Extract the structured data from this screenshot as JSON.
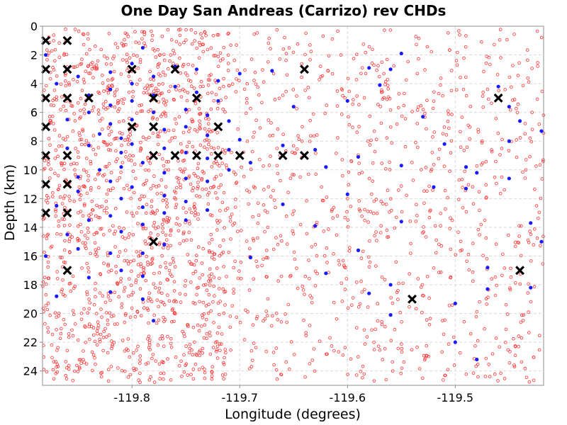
{
  "chart_data": {
    "type": "scatter",
    "title": "One Day San Andreas (Carrizo) rev CHDs",
    "xlabel": "Longitude (degrees)",
    "ylabel": "Depth (km)",
    "xlim": [
      -119.883,
      -119.418
    ],
    "ylim": [
      0,
      25
    ],
    "y_inverted": true,
    "grid": true,
    "legend": "none",
    "x_ticks": [
      -119.8,
      -119.7,
      -119.6,
      -119.5
    ],
    "x_tick_labels": [
      "-119.8",
      "-119.7",
      "-119.6",
      "-119.5"
    ],
    "y_ticks": [
      0,
      2,
      4,
      6,
      8,
      10,
      12,
      14,
      16,
      18,
      20,
      22,
      24
    ],
    "y_tick_labels": [
      "0",
      "2",
      "4",
      "6",
      "8",
      "10",
      "12",
      "14",
      "16",
      "18",
      "20",
      "22",
      "24"
    ],
    "background_cloud": {
      "color": "#ff3030",
      "marker": "open-circle",
      "approx_count": 2300,
      "x_range": [
        -119.883,
        -119.418
      ],
      "y_range": [
        0.2,
        24.8
      ]
    },
    "series": [
      {
        "marker": "filled-circle",
        "color": "#1a1aff",
        "points": [
          [
            -119.88,
            2.0
          ],
          [
            -119.87,
            4.0
          ],
          [
            -119.86,
            6.5
          ],
          [
            -119.86,
            8.5
          ],
          [
            -119.85,
            10.5
          ],
          [
            -119.87,
            12.5
          ],
          [
            -119.86,
            14.5
          ],
          [
            -119.88,
            16.0
          ],
          [
            -119.87,
            18.8
          ],
          [
            -119.85,
            3.5
          ],
          [
            -119.84,
            4.8
          ],
          [
            -119.84,
            6.0
          ],
          [
            -119.83,
            7.5
          ],
          [
            -119.84,
            8.3
          ],
          [
            -119.83,
            10.0
          ],
          [
            -119.85,
            11.5
          ],
          [
            -119.84,
            13.5
          ],
          [
            -119.85,
            15.5
          ],
          [
            -119.84,
            17.5
          ],
          [
            -119.82,
            3.2
          ],
          [
            -119.82,
            4.4
          ],
          [
            -119.82,
            5.5
          ],
          [
            -119.82,
            6.8
          ],
          [
            -119.81,
            7.8
          ],
          [
            -119.81,
            8.8
          ],
          [
            -119.81,
            9.8
          ],
          [
            -119.82,
            10.8
          ],
          [
            -119.81,
            12.0
          ],
          [
            -119.82,
            13.2
          ],
          [
            -119.81,
            14.3
          ],
          [
            -119.82,
            15.8
          ],
          [
            -119.81,
            17.0
          ],
          [
            -119.82,
            18.5
          ],
          [
            -119.8,
            2.6
          ],
          [
            -119.8,
            4.0
          ],
          [
            -119.8,
            5.2
          ],
          [
            -119.8,
            6.5
          ],
          [
            -119.8,
            8.2
          ],
          [
            -119.79,
            9.5
          ],
          [
            -119.8,
            11.2
          ],
          [
            -119.79,
            12.6
          ],
          [
            -119.79,
            13.8
          ],
          [
            -119.79,
            15.8
          ],
          [
            -119.79,
            17.4
          ],
          [
            -119.79,
            19.0
          ],
          [
            -119.78,
            20.5
          ],
          [
            -119.79,
            1.5
          ],
          [
            -119.78,
            3.5
          ],
          [
            -119.78,
            4.8
          ],
          [
            -119.78,
            6.0
          ],
          [
            -119.77,
            7.2
          ],
          [
            -119.77,
            8.5
          ],
          [
            -119.77,
            10.2
          ],
          [
            -119.77,
            11.8
          ],
          [
            -119.77,
            13.0
          ],
          [
            -119.77,
            15.2
          ],
          [
            -119.76,
            2.8
          ],
          [
            -119.76,
            4.2
          ],
          [
            -119.75,
            5.8
          ],
          [
            -119.75,
            7.0
          ],
          [
            -119.75,
            8.8
          ],
          [
            -119.75,
            10.6
          ],
          [
            -119.75,
            12.2
          ],
          [
            -119.75,
            13.5
          ],
          [
            -119.74,
            3.0
          ],
          [
            -119.74,
            4.6
          ],
          [
            -119.73,
            6.2
          ],
          [
            -119.73,
            7.6
          ],
          [
            -119.73,
            9.2
          ],
          [
            -119.73,
            10.8
          ],
          [
            -119.73,
            12.8
          ],
          [
            -119.72,
            3.8
          ],
          [
            -119.72,
            5.2
          ],
          [
            -119.71,
            6.6
          ],
          [
            -119.71,
            8.6
          ],
          [
            -119.71,
            10.0
          ],
          [
            -119.7,
            3.3
          ],
          [
            -119.7,
            7.9
          ],
          [
            -119.69,
            9.5
          ],
          [
            -119.67,
            3.1
          ],
          [
            -119.66,
            8.3
          ],
          [
            -119.65,
            5.6
          ],
          [
            -119.63,
            8.6
          ],
          [
            -119.62,
            9.8
          ],
          [
            -119.6,
            5.2
          ],
          [
            -119.59,
            9.1
          ],
          [
            -119.58,
            2.9
          ],
          [
            -119.57,
            4.1
          ],
          [
            -119.56,
            3.0
          ],
          [
            -119.56,
            18.0
          ],
          [
            -119.55,
            1.9
          ],
          [
            -119.55,
            9.7
          ],
          [
            -119.55,
            13.6
          ],
          [
            -119.53,
            6.3
          ],
          [
            -119.52,
            11.2
          ],
          [
            -119.51,
            8.2
          ],
          [
            -119.5,
            19.3
          ],
          [
            -119.5,
            22.0
          ],
          [
            -119.49,
            9.8
          ],
          [
            -119.49,
            11.3
          ],
          [
            -119.48,
            10.2
          ],
          [
            -119.48,
            23.2
          ],
          [
            -119.47,
            18.3
          ],
          [
            -119.47,
            16.8
          ],
          [
            -119.46,
            4.2
          ],
          [
            -119.45,
            5.6
          ],
          [
            -119.45,
            8.0
          ],
          [
            -119.45,
            10.6
          ],
          [
            -119.44,
            6.6
          ],
          [
            -119.43,
            13.7
          ],
          [
            -119.43,
            18.2
          ],
          [
            -119.42,
            7.3
          ],
          [
            -119.42,
            15.0
          ],
          [
            -119.69,
            16.1
          ],
          [
            -119.62,
            17.2
          ],
          [
            -119.59,
            15.6
          ],
          [
            -119.66,
            12.4
          ],
          [
            -119.63,
            13.9
          ],
          [
            -119.6,
            11.7
          ],
          [
            -119.58,
            18.6
          ],
          [
            -119.56,
            20.1
          ]
        ]
      },
      {
        "marker": "x-cross",
        "color": "#000000",
        "points": [
          [
            -119.88,
            1
          ],
          [
            -119.86,
            1
          ],
          [
            -119.88,
            3
          ],
          [
            -119.86,
            3
          ],
          [
            -119.8,
            3
          ],
          [
            -119.76,
            3
          ],
          [
            -119.64,
            3
          ],
          [
            -119.88,
            5
          ],
          [
            -119.86,
            5
          ],
          [
            -119.84,
            5
          ],
          [
            -119.78,
            5
          ],
          [
            -119.74,
            5
          ],
          [
            -119.46,
            5
          ],
          [
            -119.88,
            7
          ],
          [
            -119.8,
            7
          ],
          [
            -119.78,
            7
          ],
          [
            -119.72,
            7
          ],
          [
            -119.88,
            9
          ],
          [
            -119.86,
            9
          ],
          [
            -119.78,
            9
          ],
          [
            -119.76,
            9
          ],
          [
            -119.74,
            9
          ],
          [
            -119.72,
            9
          ],
          [
            -119.7,
            9
          ],
          [
            -119.66,
            9
          ],
          [
            -119.64,
            9
          ],
          [
            -119.88,
            11
          ],
          [
            -119.86,
            11
          ],
          [
            -119.88,
            13
          ],
          [
            -119.86,
            13
          ],
          [
            -119.78,
            15
          ],
          [
            -119.86,
            17
          ],
          [
            -119.44,
            17
          ],
          [
            -119.54,
            19
          ]
        ]
      }
    ]
  }
}
